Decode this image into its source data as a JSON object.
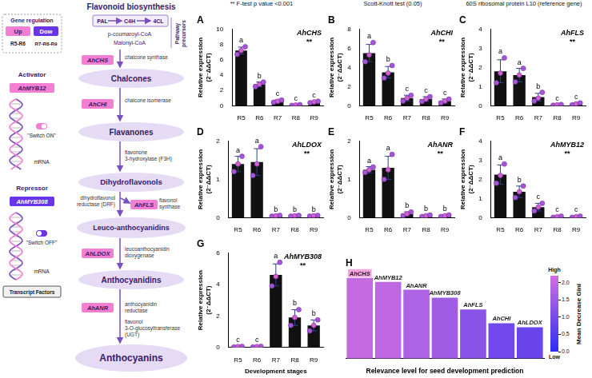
{
  "notes": [
    "** F-test p value <0.001",
    "Scott-Knott test (0.05)",
    "60S ribosomal protein L10 (reference gene)"
  ],
  "diagram": {
    "title": "Flavonoid biosynthesis",
    "gene_regulation": {
      "title": "Gene regulation",
      "up": "Up",
      "down": "Dow",
      "up_stages": "R5-R6",
      "down_stages": "R7-R8-R9"
    },
    "activator": {
      "label": "Activator",
      "gene": "AhMYB12",
      "switch": "\"Switch ON\"",
      "mrna": "mRNA"
    },
    "repressor": {
      "label": "Repressor",
      "gene": "AhMYB308",
      "switch": "\"Switch OFF\"",
      "mrna": "mRNA"
    },
    "transcript_factors": "Transcript Factors",
    "precursors": {
      "enzymes": [
        "PAL",
        "C4H",
        "4CL"
      ],
      "compounds": [
        "p-coumaroyl-CoA",
        "Malonyl-CoA"
      ],
      "label": "Pathway precursors"
    },
    "steps": [
      {
        "gene": "AhCHS",
        "enzyme": "chalcone synthase",
        "product": "Chalcones"
      },
      {
        "gene": "AhCHI",
        "enzyme": "chalcone isomerase",
        "product": "Flavanones"
      },
      {
        "enzyme": "flavonone 3-hydroxylase (F3H)",
        "product": "Dihydroflavonols"
      },
      {
        "enzyme": "dihydroflavonol reductase (DRF)",
        "side_gene": "AhFLS",
        "side_enzyme": "flavonol synthase",
        "product": "Leuco-anthocyanidins"
      },
      {
        "gene": "AhLDOX",
        "enzyme": "leucoanthocyanidin dioxygenase",
        "product": "Anthocyanidins"
      },
      {
        "gene": "AhANR",
        "enzyme": "anthocyanidin reductase",
        "enzyme2": "flavonol 3-O-glucosyltransferase (UGT)",
        "product": "Anthocyanins"
      }
    ]
  },
  "chart_data": [
    {
      "type": "bar",
      "panel": "A",
      "title": "AhCHS",
      "significance": "**",
      "categories": [
        "R5",
        "R6",
        "R7",
        "R8",
        "R9"
      ],
      "values": [
        7.2,
        2.8,
        0.6,
        0.1,
        0.5
      ],
      "errors": [
        0.45,
        0.3,
        0.15,
        0.05,
        0.1
      ],
      "points": [
        [
          6.7,
          7.2,
          7.7
        ],
        [
          2.5,
          2.8,
          3.1
        ],
        [
          0.45,
          0.6,
          0.75
        ],
        [
          0.05,
          0.1,
          0.15
        ],
        [
          0.4,
          0.5,
          0.6
        ]
      ],
      "letters": [
        "a",
        "b",
        "c",
        "c",
        "c"
      ],
      "ylim": [
        0,
        10
      ],
      "yticks": [
        0,
        2,
        4,
        6,
        8,
        10
      ],
      "y_label": "Relative expression (2⁻ΔΔCT)",
      "color": "#111111"
    },
    {
      "type": "bar",
      "panel": "B",
      "title": "AhCHI",
      "significance": "**",
      "categories": [
        "R5",
        "R6",
        "R7",
        "R8",
        "R9"
      ],
      "values": [
        5.5,
        3.5,
        0.8,
        0.7,
        0.5
      ],
      "errors": [
        0.9,
        0.6,
        0.3,
        0.25,
        0.2
      ],
      "points": [
        [
          4.6,
          5.3,
          6.6
        ],
        [
          2.9,
          3.4,
          4.2
        ],
        [
          0.5,
          0.8,
          1.1
        ],
        [
          0.45,
          0.7,
          0.95
        ],
        [
          0.3,
          0.5,
          0.7
        ]
      ],
      "letters": [
        "a",
        "b",
        "c",
        "c",
        "c"
      ],
      "ylim": [
        0,
        8
      ],
      "yticks": [
        0,
        2,
        4,
        6,
        8
      ],
      "y_label": "Relative expression (2⁻ΔΔCT)",
      "color": "#111111"
    },
    {
      "type": "bar",
      "panel": "C",
      "title": "AhFLS",
      "significance": "**",
      "categories": [
        "R5",
        "R6",
        "R7",
        "R8",
        "R9"
      ],
      "values": [
        1.8,
        1.6,
        0.45,
        0.05,
        0.1
      ],
      "errors": [
        0.6,
        0.35,
        0.2,
        0.02,
        0.05
      ],
      "points": [
        [
          1.2,
          1.7,
          2.5
        ],
        [
          1.25,
          1.6,
          1.95
        ],
        [
          0.25,
          0.4,
          0.7
        ],
        [
          0.03,
          0.05,
          0.07
        ],
        [
          0.05,
          0.1,
          0.15
        ]
      ],
      "letters": [
        "a",
        "a",
        "b",
        "c",
        "c"
      ],
      "ylim": [
        0,
        4
      ],
      "yticks": [
        0,
        1,
        2,
        3,
        4
      ],
      "y_label": "Relative expression (2⁻ΔΔCT)",
      "color": "#111111"
    },
    {
      "type": "bar",
      "panel": "D",
      "title": "AhLDOX",
      "significance": "**",
      "categories": [
        "R5",
        "R6",
        "R7",
        "R8",
        "R9"
      ],
      "values": [
        1.4,
        1.45,
        0.05,
        0.05,
        0.05
      ],
      "errors": [
        0.2,
        0.35,
        0.01,
        0.01,
        0.01
      ],
      "points": [
        [
          1.2,
          1.4,
          1.6
        ],
        [
          1.1,
          1.4,
          1.85
        ],
        [
          0.04,
          0.05,
          0.06
        ],
        [
          0.04,
          0.05,
          0.06
        ],
        [
          0.04,
          0.05,
          0.06
        ]
      ],
      "letters": [
        "a",
        "a",
        "b",
        "b",
        "b"
      ],
      "ylim": [
        0,
        2
      ],
      "yticks": [
        0,
        1,
        2
      ],
      "y_label": "Relative expression (2⁻ΔΔCT)",
      "color": "#111111"
    },
    {
      "type": "bar",
      "panel": "E",
      "title": "AhANR",
      "significance": "**",
      "categories": [
        "R5",
        "R6",
        "R7",
        "R8",
        "R9"
      ],
      "values": [
        1.25,
        1.3,
        0.1,
        0.05,
        0.05
      ],
      "errors": [
        0.08,
        0.3,
        0.05,
        0.02,
        0.02
      ],
      "points": [
        [
          1.18,
          1.25,
          1.32
        ],
        [
          1.0,
          1.25,
          1.65
        ],
        [
          0.05,
          0.1,
          0.15
        ],
        [
          0.03,
          0.05,
          0.07
        ],
        [
          0.03,
          0.05,
          0.07
        ]
      ],
      "letters": [
        "a",
        "a",
        "b",
        "b",
        "b"
      ],
      "ylim": [
        0,
        2
      ],
      "yticks": [
        0,
        1,
        2
      ],
      "y_label": "Relative expression (2⁻ΔΔCT)",
      "color": "#111111"
    },
    {
      "type": "bar",
      "panel": "F",
      "title": "AhMYB12",
      "significance": "**",
      "categories": [
        "R5",
        "R6",
        "R7",
        "R8",
        "R9"
      ],
      "values": [
        2.25,
        1.35,
        0.55,
        0.05,
        0.05
      ],
      "errors": [
        0.5,
        0.3,
        0.2,
        0.03,
        0.03
      ],
      "points": [
        [
          1.8,
          2.2,
          2.8
        ],
        [
          1.05,
          1.35,
          1.65
        ],
        [
          0.35,
          0.55,
          0.75
        ],
        [
          0.02,
          0.05,
          0.08
        ],
        [
          0.02,
          0.05,
          0.08
        ]
      ],
      "letters": [
        "a",
        "b",
        "c",
        "c",
        "c"
      ],
      "ylim": [
        0,
        4
      ],
      "yticks": [
        0,
        1,
        2,
        3,
        4
      ],
      "y_label": "Relative expression (2⁻ΔΔCT)",
      "color": "#111111"
    },
    {
      "type": "bar",
      "panel": "G",
      "title": "AhMYB308",
      "significance": "**",
      "categories": [
        "R5",
        "R6",
        "R7",
        "R8",
        "R9"
      ],
      "values": [
        0.05,
        0.05,
        4.6,
        1.9,
        1.4
      ],
      "errors": [
        0.02,
        0.02,
        0.7,
        0.5,
        0.35
      ],
      "points": [
        [
          0.03,
          0.05,
          0.07
        ],
        [
          0.03,
          0.05,
          0.07
        ],
        [
          3.9,
          4.5,
          5.4
        ],
        [
          1.4,
          1.9,
          2.4
        ],
        [
          1.05,
          1.4,
          1.75
        ]
      ],
      "letters": [
        "c",
        "c",
        "a",
        "b",
        "b"
      ],
      "ylim": [
        0,
        6
      ],
      "yticks": [
        0,
        2,
        4,
        6
      ],
      "y_label": "Relative expression (2⁻ΔΔCT)",
      "x_label": "Development stages",
      "color": "#111111"
    },
    {
      "type": "bar",
      "panel": "H",
      "categories": [
        "AhCHS",
        "AhMYB12",
        "AhANR",
        "AhMYB308",
        "AhFLS",
        "AhCHI",
        "AhLDOX"
      ],
      "values": [
        2.05,
        1.95,
        1.75,
        1.55,
        1.25,
        0.9,
        0.8
      ],
      "ylim": [
        0,
        2.2
      ],
      "tick_labels": false,
      "x_label": "Relevance level for seed development prediction",
      "colorbar": {
        "title": "Mean Decrease Gini",
        "high": "High",
        "low": "Low",
        "range": [
          0,
          2.2
        ],
        "ticks": [
          {
            "value": 0,
            "label": "0.0"
          },
          {
            "value": 0.5,
            "label": "0.5"
          },
          {
            "value": 1,
            "label": "1.0"
          },
          {
            "value": 1.5,
            "label": "1.5"
          },
          {
            "value": 2,
            "label": "2.0"
          }
        ],
        "colors": [
          "#2f2cf2",
          "#cf70e0"
        ]
      }
    }
  ]
}
